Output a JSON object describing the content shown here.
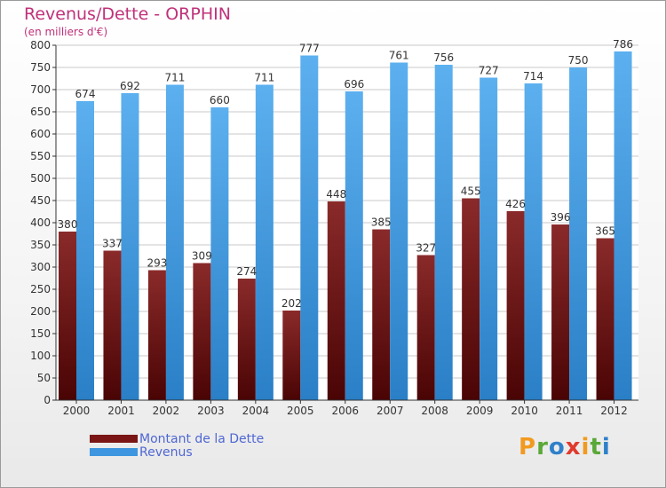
{
  "header": {
    "title": "Revenus/Dette - ORPHIN",
    "subtitle": "(en milliers d'€)"
  },
  "legend": [
    {
      "label": "Montant de la Dette",
      "color": "#7a1515"
    },
    {
      "label": "Revenus",
      "color": "#3d96df"
    }
  ],
  "brand": {
    "text": "Proxiti",
    "colors": [
      "#f29a1f",
      "#5aa838",
      "#2f80c9",
      "#e03a2e",
      "#f29a1f",
      "#5aa838",
      "#2f80c9"
    ]
  },
  "chart_data": {
    "type": "bar",
    "categories": [
      "2000",
      "2001",
      "2002",
      "2003",
      "2004",
      "2005",
      "2006",
      "2007",
      "2008",
      "2009",
      "2010",
      "2011",
      "2012"
    ],
    "series": [
      {
        "name": "Montant de la Dette",
        "values": [
          380,
          337,
          293,
          309,
          274,
          202,
          448,
          385,
          327,
          455,
          426,
          396,
          365
        ]
      },
      {
        "name": "Revenus",
        "values": [
          674,
          692,
          711,
          660,
          711,
          777,
          696,
          761,
          756,
          727,
          714,
          750,
          786
        ]
      }
    ],
    "ylim": [
      0,
      800
    ],
    "ytick_step": 50,
    "grid": true,
    "legend_position": "bottom-left"
  }
}
